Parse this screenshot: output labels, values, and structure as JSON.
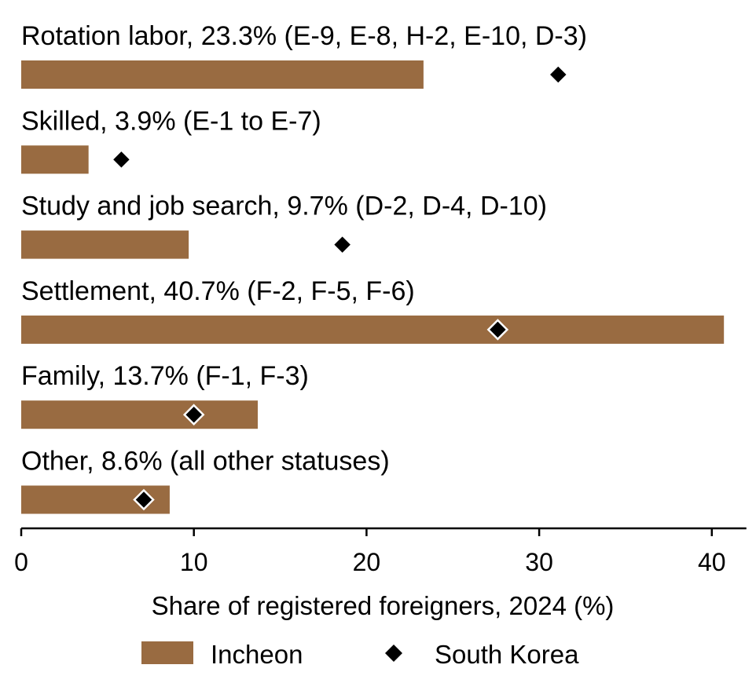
{
  "chart_data": {
    "type": "bar",
    "orientation": "horizontal",
    "categories": [
      "Rotation labor, 23.3% (E-9, E-8, H-2, E-10, D-3)",
      "Skilled, 3.9% (E-1 to E-7)",
      "Study and job search, 9.7% (D-2, D-4, D-10)",
      "Settlement, 40.7% (F-2, F-5, F-6)",
      "Family, 13.7% (F-1, F-3)",
      "Other, 8.6% (all other statuses)"
    ],
    "series": [
      {
        "name": "Incheon",
        "kind": "bar",
        "color": "#996B41",
        "values": [
          23.3,
          3.9,
          9.7,
          40.7,
          13.7,
          8.6
        ]
      },
      {
        "name": "South Korea",
        "kind": "diamond-marker",
        "color": "#000000",
        "values": [
          31.1,
          5.8,
          18.6,
          27.6,
          10.0,
          7.1
        ]
      }
    ],
    "xlabel": "Share of registered foreigners, 2024 (%)",
    "ylabel": "",
    "xlim": [
      0,
      42
    ],
    "xticks": [
      0,
      10,
      20,
      30,
      40
    ],
    "grid": false,
    "legend_position": "bottom-center"
  }
}
